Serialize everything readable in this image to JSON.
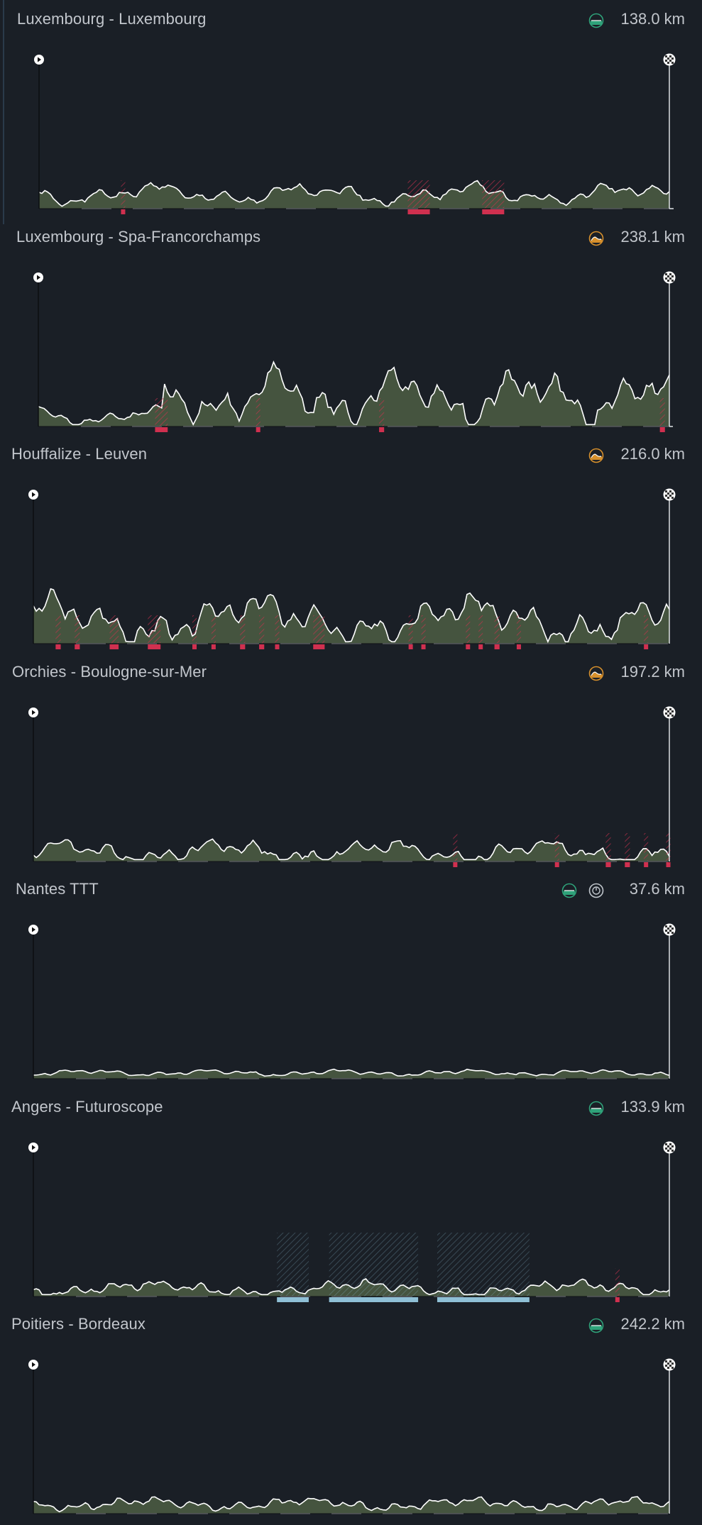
{
  "colors": {
    "background": "#1a1f26",
    "terrain_fill": "#4e5e44",
    "profile_line": "#ffffff",
    "climb_marker": "#d0304f",
    "cobble_marker": "#8fc0d6",
    "flat_icon": "#2fa37a",
    "hilly_icon": "#d7902c",
    "itt_icon": "#c0c6cc"
  },
  "stages": [
    {
      "title": "Luxembourg - Luxembourg",
      "distance": "138.0 km",
      "icons": [
        "flat-stage-icon"
      ],
      "profile_seed": 1,
      "base": 0.15,
      "amp": 0.13,
      "climbs": [
        {
          "x": 0.13,
          "w": 0.004
        },
        {
          "x": 0.585,
          "w": 0.035
        },
        {
          "x": 0.703,
          "w": 0.035
        }
      ],
      "cobbles": []
    },
    {
      "title": "Luxembourg - Spa-Francorchamps",
      "distance": "238.1 km",
      "icons": [
        "hilly-stage-icon"
      ],
      "profile_seed": 2,
      "base": 0.3,
      "amp": 0.35,
      "climbs": [
        {
          "x": 0.185,
          "w": 0.02
        },
        {
          "x": 0.345,
          "w": 0.005
        },
        {
          "x": 0.54,
          "w": 0.008
        },
        {
          "x": 0.985,
          "w": 0.008
        }
      ],
      "cobbles": []
    },
    {
      "title": "Houffalize - Leuven",
      "distance": "216.0 km",
      "icons": [
        "hilly-stage-icon"
      ],
      "profile_seed": 3,
      "base": 0.25,
      "amp": 0.3,
      "climbs": [
        {
          "x": 0.035,
          "w": 0.008
        },
        {
          "x": 0.065,
          "w": 0.008
        },
        {
          "x": 0.12,
          "w": 0.014
        },
        {
          "x": 0.18,
          "w": 0.02
        },
        {
          "x": 0.25,
          "w": 0.005
        },
        {
          "x": 0.28,
          "w": 0.005
        },
        {
          "x": 0.325,
          "w": 0.008
        },
        {
          "x": 0.355,
          "w": 0.008
        },
        {
          "x": 0.38,
          "w": 0.005
        },
        {
          "x": 0.44,
          "w": 0.018
        },
        {
          "x": 0.59,
          "w": 0.006
        },
        {
          "x": 0.61,
          "w": 0.006
        },
        {
          "x": 0.68,
          "w": 0.005
        },
        {
          "x": 0.7,
          "w": 0.006
        },
        {
          "x": 0.725,
          "w": 0.008
        },
        {
          "x": 0.76,
          "w": 0.005
        },
        {
          "x": 0.96,
          "w": 0.005
        }
      ],
      "cobbles": []
    },
    {
      "title": "Orchies - Boulogne-sur-Mer",
      "distance": "197.2 km",
      "icons": [
        "hilly-stage-icon"
      ],
      "profile_seed": 4,
      "base": 0.1,
      "amp": 0.15,
      "climbs": [
        {
          "x": 0.66,
          "w": 0.005
        },
        {
          "x": 0.82,
          "w": 0.006
        },
        {
          "x": 0.9,
          "w": 0.008
        },
        {
          "x": 0.93,
          "w": 0.008
        },
        {
          "x": 0.96,
          "w": 0.006
        },
        {
          "x": 0.995,
          "w": 0.004
        }
      ],
      "cobbles": []
    },
    {
      "title": "Nantes TTT",
      "distance": "37.6 km",
      "icons": [
        "flat-stage-icon",
        "time-trial-icon"
      ],
      "profile_seed": 5,
      "base": 0.06,
      "amp": 0.04,
      "climbs": [],
      "cobbles": []
    },
    {
      "title": "Angers - Futuroscope",
      "distance": "133.9 km",
      "icons": [
        "flat-stage-icon"
      ],
      "profile_seed": 6,
      "base": 0.08,
      "amp": 0.1,
      "climbs": [
        {
          "x": 0.915,
          "w": 0.005
        }
      ],
      "cobbles": [
        {
          "x": 0.383,
          "w": 0.05
        },
        {
          "x": 0.465,
          "w": 0.14
        },
        {
          "x": 0.635,
          "w": 0.145
        }
      ]
    },
    {
      "title": "Poitiers - Bordeaux",
      "distance": "242.2 km",
      "icons": [
        "flat-stage-icon"
      ],
      "profile_seed": 7,
      "base": 0.1,
      "amp": 0.08,
      "climbs": [],
      "cobbles": []
    }
  ]
}
